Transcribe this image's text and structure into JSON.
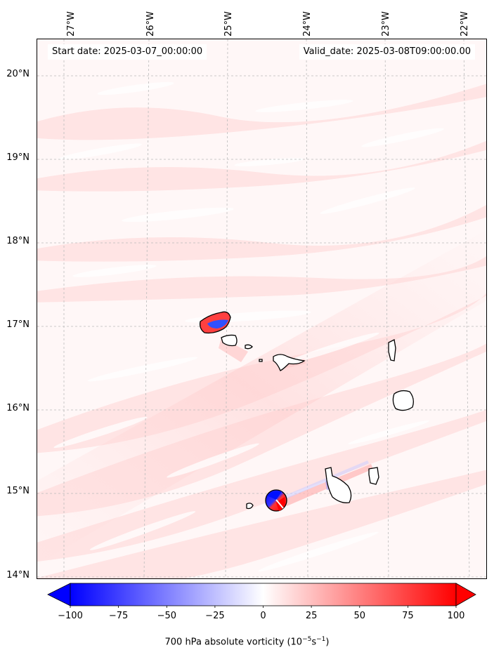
{
  "header": {
    "start_date": "Start date: 2025-03-07_00:00:00",
    "valid_date": "Valid_date: 2025-03-08T09:00:00.00"
  },
  "longitude_labels": [
    "27°W",
    "26°W",
    "25°W",
    "24°W",
    "23°W",
    "22°W"
  ],
  "latitude_labels": [
    "20°N",
    "19°N",
    "18°N",
    "17°N",
    "16°N",
    "15°N",
    "14°N"
  ],
  "colorbar": {
    "ticks": [
      "−100",
      "−75",
      "−50",
      "−25",
      "0",
      "25",
      "50",
      "75",
      "100"
    ],
    "min": -100,
    "max": 100,
    "low_color": "#0000ff",
    "mid_color": "#ffffff",
    "high_color": "#ff0000",
    "label_main": "700 hPa absolute vorticity (10",
    "label_exp1": "−5",
    "label_mid": "s",
    "label_exp2": "−1",
    "label_end": ")"
  },
  "map": {
    "background_color": "#fff7f7",
    "graticule_color": "#bbbbbb",
    "coast_color": "#000000"
  }
}
